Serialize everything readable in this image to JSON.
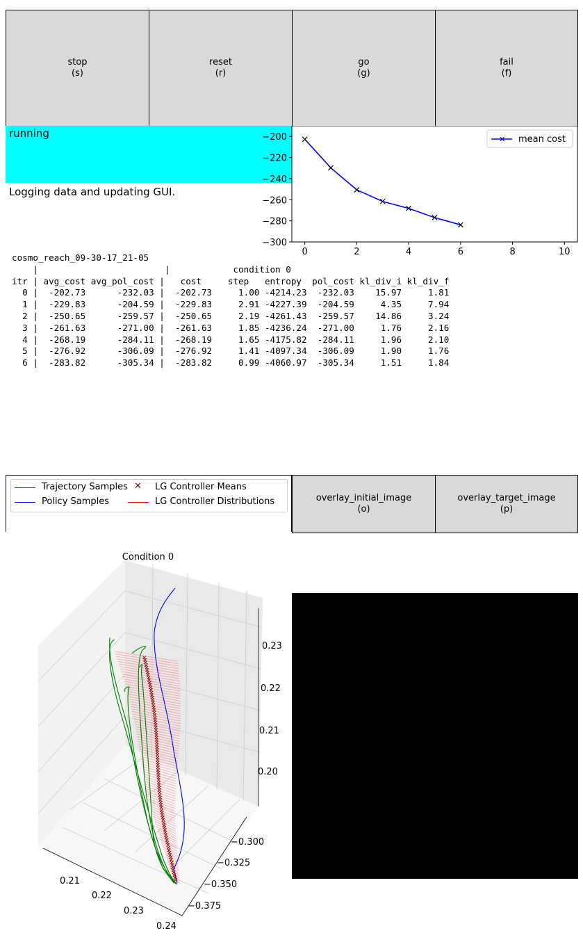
{
  "buttons": {
    "stop": "stop\n(s)",
    "reset": "reset\n(r)",
    "go": "go\n(g)",
    "fail": "fail\n(f)",
    "overlay_initial": "overlay_initial_image\n(o)",
    "overlay_target": "overlay_target_image\n(p)"
  },
  "status": {
    "state": "running",
    "message": "Logging data and updating GUI.",
    "color": "#00ffff"
  },
  "table_text": "cosmo_reach_09-30-17_21-05\n    |                        |            condition 0\nitr | avg_cost avg_pol_cost |   cost     step   entropy  pol_cost kl_div_i kl_div_f\n  0 |  -202.73      -232.03 |  -202.73     1.00 -4214.23  -232.03    15.97     1.81\n  1 |  -229.83      -204.59 |  -229.83     2.91 -4227.39  -204.59     4.35     7.94\n  2 |  -250.65      -259.57 |  -250.65     2.19 -4261.43  -259.57    14.86     3.24\n  3 |  -261.63      -271.00 |  -261.63     1.85 -4236.24  -271.00     1.76     2.16\n  4 |  -268.19      -284.11 |  -268.19     1.65 -4175.82  -284.11     1.96     2.10\n  5 |  -276.92      -306.09 |  -276.92     1.41 -4097.34  -306.09     1.90     1.76\n  6 |  -283.82      -305.34 |  -283.82     0.99 -4060.97  -305.34     1.51     1.84",
  "chart_data": [
    {
      "type": "line",
      "series": [
        {
          "name": "mean cost",
          "x": [
            0,
            1,
            2,
            3,
            4,
            5,
            6
          ],
          "values": [
            -202.73,
            -229.83,
            -250.65,
            -261.63,
            -268.19,
            -276.92,
            -283.82
          ],
          "color": "#0000ff",
          "marker": "x"
        }
      ],
      "xlim": [
        -0.5,
        10.5
      ],
      "ylim": [
        -300,
        -190
      ],
      "xticks": [
        "0",
        "2",
        "4",
        "6",
        "8",
        "10"
      ],
      "yticks": [
        "−200",
        "−220",
        "−240",
        "−260",
        "−280",
        "−300"
      ],
      "legend": "top-right"
    }
  ],
  "plot3d": {
    "title": "Condition 0",
    "ztick_labels": [
      "0.23",
      "0.22",
      "0.21",
      "0.20"
    ],
    "ytick_labels": [
      "−0.300",
      "−0.325",
      "−0.350",
      "−0.375"
    ],
    "xtick_labels": [
      "0.21",
      "0.22",
      "0.23",
      "0.24"
    ],
    "legend": [
      {
        "label": "Trajectory Samples",
        "color": "#008000",
        "kind": "line"
      },
      {
        "label": "LG Controller Means",
        "color": "#8b0000",
        "kind": "x"
      },
      {
        "label": "Policy Samples",
        "color": "#0000ff",
        "kind": "line"
      },
      {
        "label": "LG Controller Distributions",
        "color": "#ff0000",
        "kind": "line"
      }
    ]
  }
}
